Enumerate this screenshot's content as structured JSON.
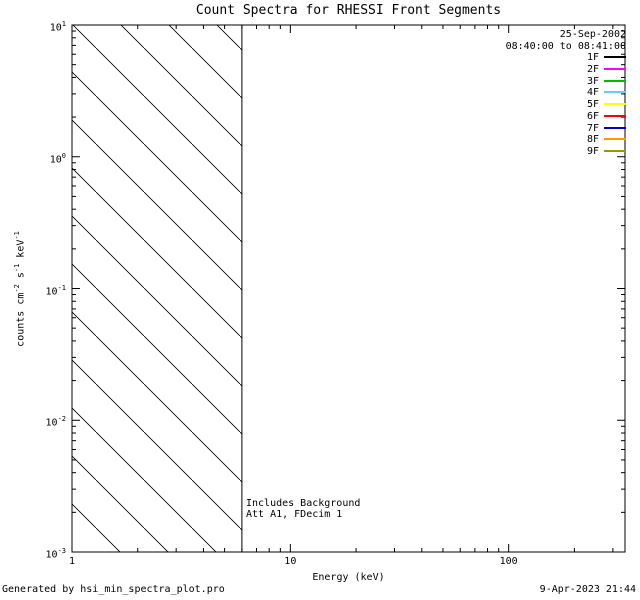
{
  "chart_data": {
    "type": "line",
    "title": "Count Spectra for RHESSI Front Segments",
    "xlabel": "Energy (keV)",
    "ylabel_plain": "counts cm-2 s-1 keV-1",
    "ylabel_parts": [
      {
        "text": "counts cm"
      },
      {
        "sup": "-2"
      },
      {
        "text": " s"
      },
      {
        "sup": "-1"
      },
      {
        "text": " keV"
      },
      {
        "sup": "-1"
      }
    ],
    "x_scale": "log",
    "y_scale": "log",
    "xlim": [
      1,
      341
    ],
    "ylim": [
      0.001,
      10
    ],
    "x_major_ticks": [
      {
        "value": 1,
        "label": "1"
      },
      {
        "value": 10,
        "label": "10"
      },
      {
        "value": 100,
        "label": "100"
      }
    ],
    "y_major_ticks": [
      {
        "value": 10,
        "base": "10",
        "exp": "1"
      },
      {
        "value": 1,
        "base": "10",
        "exp": "0"
      },
      {
        "value": 0.1,
        "base": "10",
        "exp": "-1"
      },
      {
        "value": 0.01,
        "base": "10",
        "exp": "-2"
      },
      {
        "value": 0.001,
        "base": "10",
        "exp": "-3"
      }
    ],
    "background_region": {
      "x_start": 1,
      "x_end": 6,
      "hatch": "diagonal"
    },
    "vertical_line_x": 6,
    "annotations": [
      "Includes Background",
      "Att A1, FDecim 1"
    ],
    "series": []
  },
  "legend": {
    "date": "25-Sep-2002",
    "time_range": "08:40:00 to 08:41:00",
    "entries": [
      {
        "label": "1F",
        "color": "#000000"
      },
      {
        "label": "2F",
        "color": "#ff00ff"
      },
      {
        "label": "3F",
        "color": "#00bb00"
      },
      {
        "label": "4F",
        "color": "#66ccff"
      },
      {
        "label": "5F",
        "color": "#ffff00"
      },
      {
        "label": "6F",
        "color": "#ff0000"
      },
      {
        "label": "7F",
        "color": "#0000cc"
      },
      {
        "label": "8F",
        "color": "#ff9900"
      },
      {
        "label": "9F",
        "color": "#999900"
      }
    ]
  },
  "footer": {
    "generated_by": "Generated by hsi_min_spectra_plot.pro",
    "timestamp": "9-Apr-2023 21:44"
  }
}
